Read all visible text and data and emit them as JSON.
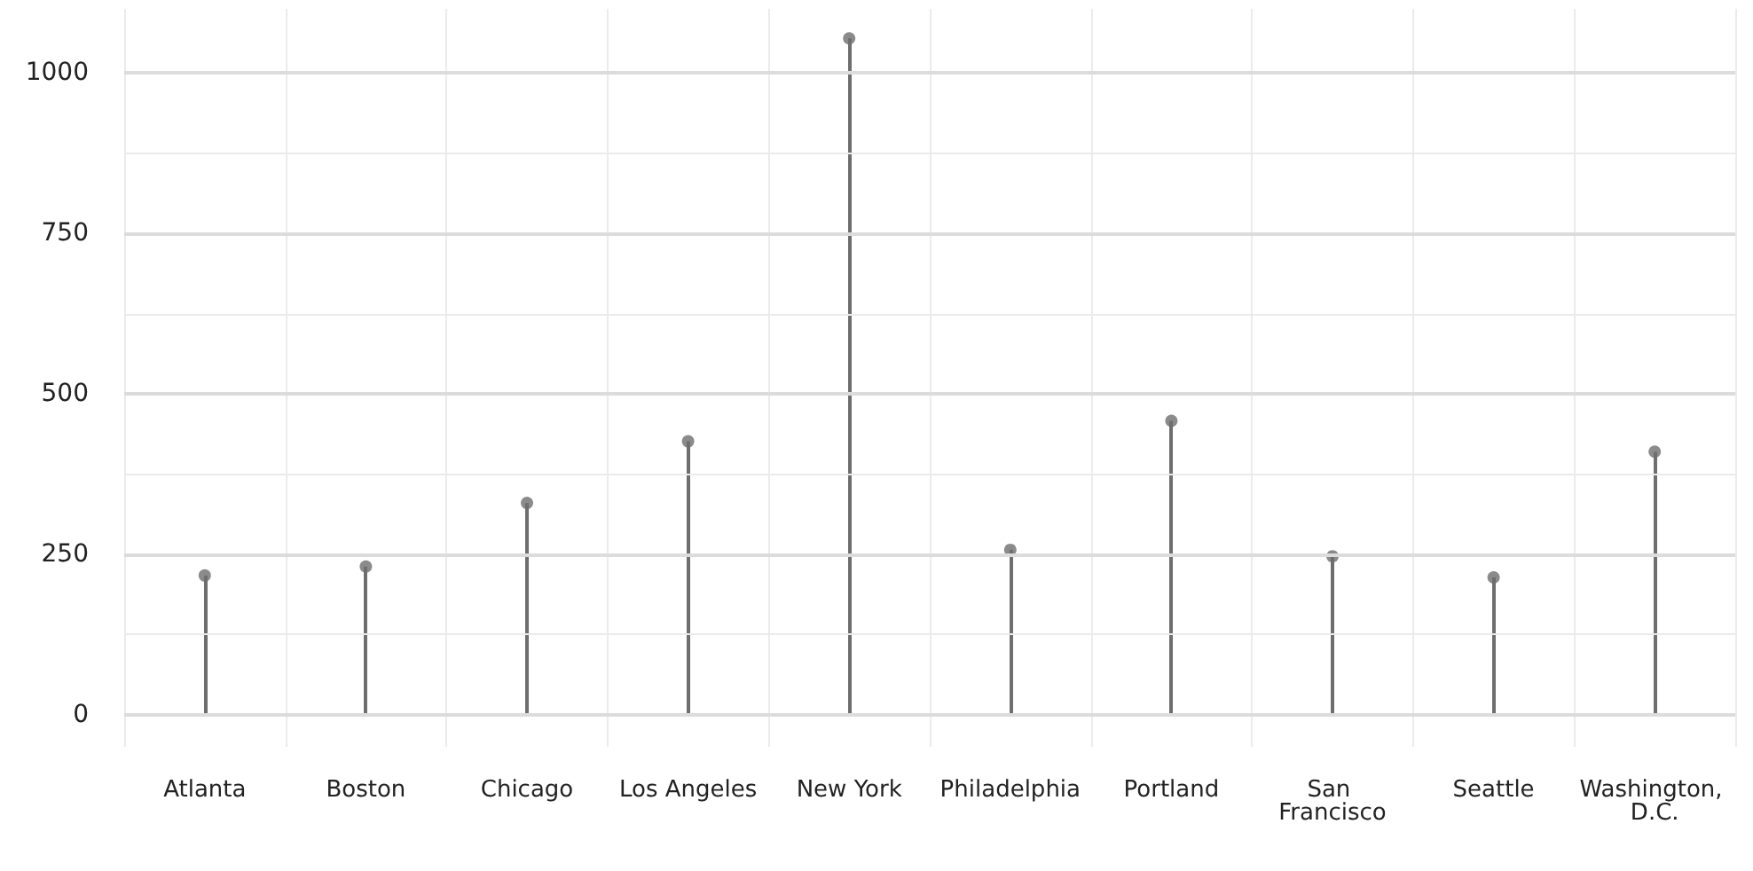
{
  "chart_data": {
    "type": "lollipop",
    "categories": [
      "Atlanta",
      "Boston",
      "Chicago",
      "Los Angeles",
      "New York",
      "Philadelphia",
      "Portland",
      "San Francisco",
      "Seattle",
      "Washington, D.C."
    ],
    "values": [
      217,
      231,
      330,
      426,
      1054,
      257,
      458,
      247,
      214,
      410
    ],
    "color": "#6e6e6e",
    "ylim": [
      -50,
      1100
    ],
    "yticks": [
      0,
      250,
      500,
      750,
      1000
    ],
    "grid": true,
    "marker": "circle",
    "line_style": "solid"
  }
}
